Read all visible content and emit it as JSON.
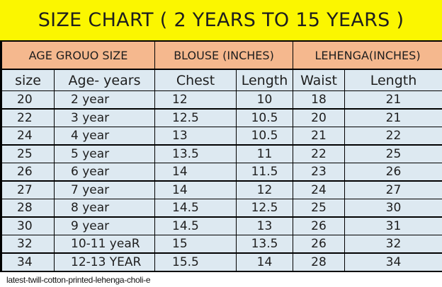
{
  "title": "SIZE CHART ( 2 YEARS TO 15 YEARS )",
  "group_headers": [
    "AGE GROUO SIZE",
    "BLOUSE (INCHES)",
    "LEHENGA(INCHES)"
  ],
  "column_headers": [
    "size",
    "Age-  years",
    "Chest",
    "Length",
    "Waist",
    "Length"
  ],
  "rows": [
    [
      "20",
      "2 year",
      "12",
      "10",
      "18",
      "21"
    ],
    [
      "22",
      "3 year",
      "12.5",
      "10.5",
      "20",
      "21"
    ],
    [
      "24",
      "4 year",
      "13",
      "10.5",
      "21",
      "22"
    ],
    [
      "25",
      "5 year",
      "13.5",
      "11",
      "22",
      "25"
    ],
    [
      "26",
      "6 year",
      "14",
      "11.5",
      "23",
      "26"
    ],
    [
      "27",
      "7 year",
      "14",
      "12",
      "24",
      "27"
    ],
    [
      "28",
      "8 year",
      "14.5",
      "12.5",
      "25",
      "30"
    ],
    [
      "30",
      "9 year",
      "14.5",
      "13",
      "26",
      "31"
    ],
    [
      "32",
      "10-11 yeaR",
      "15",
      "13.5",
      "26",
      "32"
    ],
    [
      "34",
      "12-13 YEAR",
      "15.5",
      "14",
      "28",
      "34"
    ]
  ],
  "caption": "latest-twill-cotton-printed-lehenga-choli-e"
}
